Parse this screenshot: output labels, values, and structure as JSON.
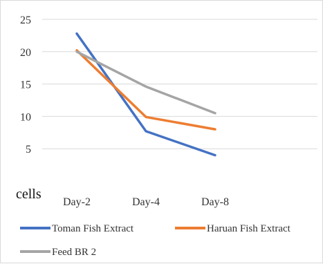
{
  "chart_data": {
    "type": "line",
    "categories": [
      "Day-2",
      "Day-4",
      "Day-8"
    ],
    "ylabel": "cells",
    "ylim": [
      0,
      25
    ],
    "yticks": [
      5,
      10,
      15,
      20,
      25
    ],
    "grid": "horizontal",
    "legend_position": "bottom",
    "series": [
      {
        "name": "Toman Fish Extract",
        "color": "#4472C4",
        "values": [
          22.8,
          7.7,
          4.0
        ]
      },
      {
        "name": "Haruan Fish Extract",
        "color": "#ED7D31",
        "values": [
          20.2,
          9.9,
          8.0
        ]
      },
      {
        "name": "Feed BR 2",
        "color": "#A5A5A5",
        "values": [
          20.0,
          14.6,
          10.5
        ]
      }
    ]
  }
}
